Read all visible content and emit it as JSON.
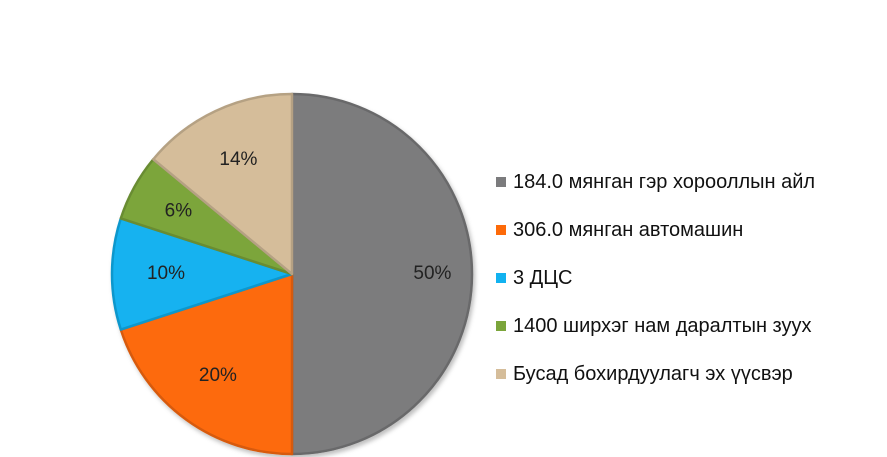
{
  "chart_data": {
    "type": "pie",
    "title": "",
    "categories": [
      "184.0 мянган гэр хорооллын айл",
      "306.0 мянган автомашин",
      "3 ДЦС",
      "1400 ширхэг нам даралтын зуух",
      "Бусад бохирдуулагч эх үүсвэр"
    ],
    "values": [
      50,
      20,
      10,
      6,
      14
    ],
    "labels": [
      "50%",
      "20%",
      "10%",
      "6%",
      "14%"
    ],
    "colors": [
      "#7b7b7d",
      "#fd6a09",
      "#12b2f0",
      "#7ba53b",
      "#d5bd9a"
    ],
    "legend_position": "right",
    "start_angle": "12 o'clock",
    "direction": "clockwise"
  }
}
